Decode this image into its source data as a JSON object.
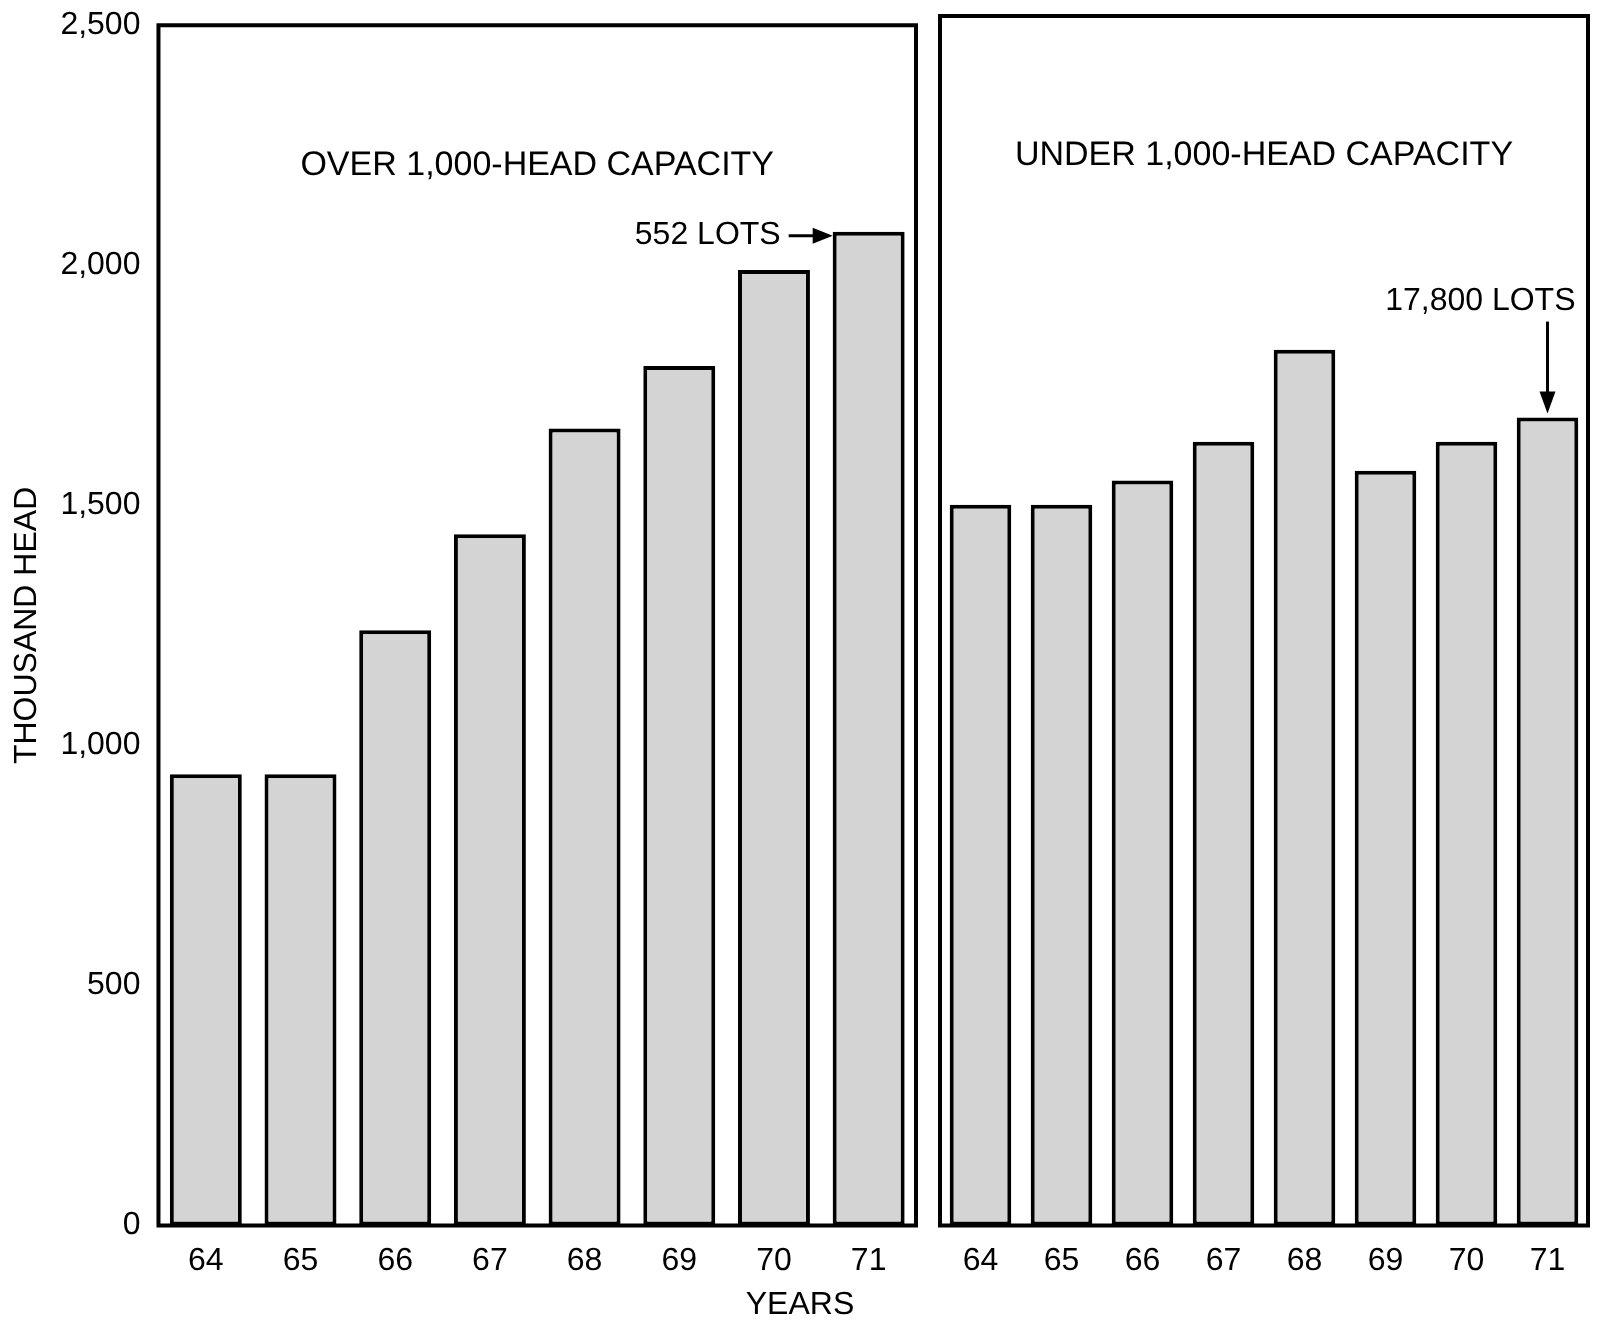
{
  "chart_data": [
    {
      "type": "bar",
      "title": "OVER 1,000-HEAD CAPACITY",
      "xlabel": "YEARS",
      "ylabel": "THOUSAND HEAD",
      "categories": [
        "64",
        "65",
        "66",
        "67",
        "68",
        "69",
        "70",
        "71"
      ],
      "values": [
        940,
        940,
        1240,
        1440,
        1660,
        1790,
        1990,
        2070
      ],
      "color": "#d4d4d4",
      "ylim": [
        0,
        2500
      ],
      "yticks": [
        0,
        500,
        {
          "value": 1000,
          "label": "1,000"
        },
        {
          "value": 1500,
          "label": "1,500"
        },
        {
          "value": 2000,
          "label": "2,000"
        },
        {
          "value": 2500,
          "label": "2,500"
        }
      ],
      "grid": false,
      "legend": false,
      "annotations": [
        {
          "text": "552 LOTS",
          "x": "71",
          "y": 2070
        }
      ]
    },
    {
      "type": "bar",
      "title": "UNDER 1,000-HEAD CAPACITY",
      "categories": [
        "64",
        "65",
        "66",
        "67",
        "68",
        "69",
        "70",
        "71"
      ],
      "values": [
        1490,
        1490,
        1540,
        1620,
        1810,
        1560,
        1620,
        1670
      ],
      "color": "#d4d4d4",
      "ylim": [
        0,
        2500
      ],
      "grid": false,
      "legend": false,
      "tick_labels": "x",
      "annotations": [
        {
          "text": "17,800 LOTS",
          "x": "71",
          "y": 1670
        }
      ]
    }
  ]
}
